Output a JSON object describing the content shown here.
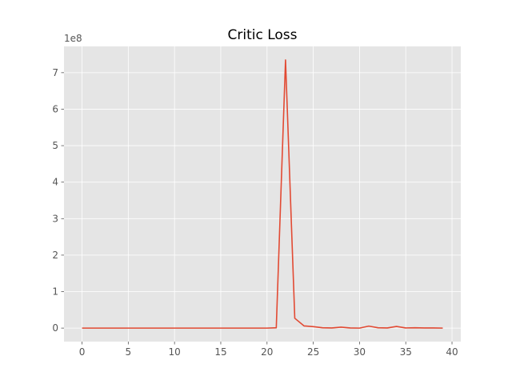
{
  "chart_data": {
    "type": "line",
    "title": "Critic Loss",
    "xlabel": "",
    "ylabel": "",
    "y_offset_label": "1e8",
    "xlim": [
      -1.95,
      40.95
    ],
    "ylim": [
      -0.37,
      7.72
    ],
    "x_ticks": [
      0,
      5,
      10,
      15,
      20,
      25,
      30,
      35,
      40
    ],
    "x_tick_labels": [
      "0",
      "5",
      "10",
      "15",
      "20",
      "25",
      "30",
      "35",
      "40"
    ],
    "y_ticks": [
      0,
      1,
      2,
      3,
      4,
      5,
      6,
      7
    ],
    "y_tick_labels": [
      "0",
      "1",
      "2",
      "3",
      "4",
      "5",
      "6",
      "7"
    ],
    "grid": true,
    "style": "ggplot",
    "colors": {
      "background": "#e5e5e5",
      "grid": "#ffffff",
      "line": "#e24a33",
      "tick": "#555555"
    },
    "series": [
      {
        "x": [
          0,
          1,
          2,
          3,
          4,
          5,
          6,
          7,
          8,
          9,
          10,
          11,
          12,
          13,
          14,
          15,
          16,
          17,
          18,
          19,
          20,
          21,
          22,
          23,
          24,
          25,
          26,
          27,
          28,
          29,
          30,
          31,
          32,
          33,
          34,
          35,
          36,
          37,
          38,
          39
        ],
        "values": [
          0,
          0,
          0,
          0,
          0,
          0,
          0,
          0,
          0,
          0,
          0,
          0,
          0,
          0,
          0,
          0,
          0,
          0,
          0,
          0,
          0,
          0.01,
          7.35,
          0.27,
          0.06,
          0.04,
          0.01,
          0.005,
          0.025,
          0.005,
          0.0,
          0.055,
          0.01,
          0.005,
          0.045,
          0.005,
          0.01,
          0.005,
          0.005,
          0.0
        ]
      }
    ]
  }
}
